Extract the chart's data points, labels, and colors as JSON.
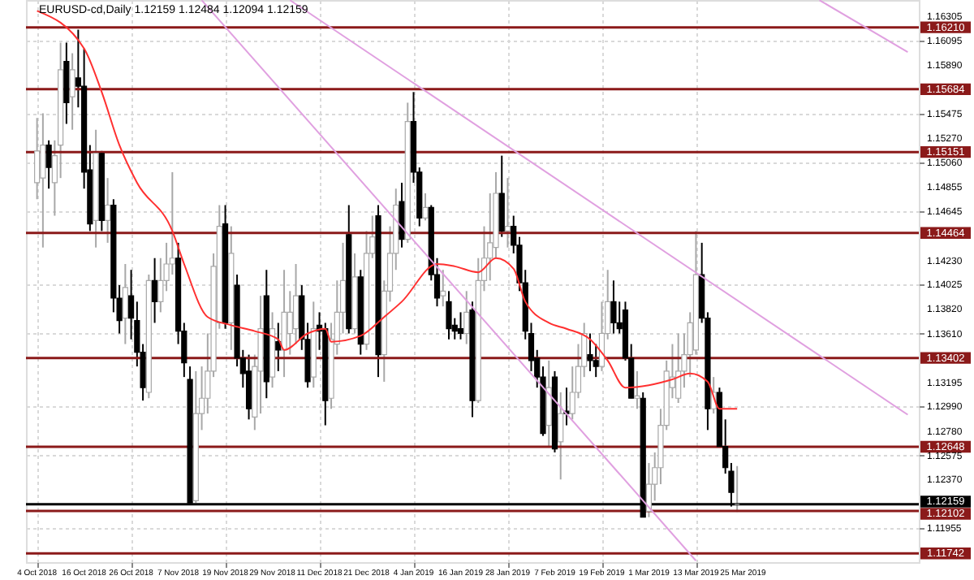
{
  "chart_data": {
    "type": "candlestick",
    "title": "EURUSD-cd,Daily  1.12159 1.12484 1.12094 1.12159",
    "categories": [
      "4 Oct 2018",
      null,
      null,
      null,
      null,
      null,
      null,
      null,
      "16 Oct 2018",
      null,
      null,
      null,
      null,
      null,
      null,
      null,
      "26 Oct 2018",
      null,
      null,
      null,
      null,
      null,
      null,
      null,
      "7 Nov 2018",
      null,
      null,
      null,
      null,
      null,
      null,
      null,
      "19 Nov 2018",
      null,
      null,
      null,
      null,
      null,
      null,
      null,
      "29 Nov 2018",
      null,
      null,
      null,
      null,
      null,
      null,
      null,
      "11 Dec 2018",
      null,
      null,
      null,
      null,
      null,
      null,
      null,
      "21 Dec 2018",
      null,
      null,
      null,
      null,
      null,
      null,
      null,
      "4 Jan 2019",
      null,
      null,
      null,
      null,
      null,
      null,
      null,
      "16 Jan 2019",
      null,
      null,
      null,
      null,
      null,
      null,
      null,
      "28 Jan 2019",
      null,
      null,
      null,
      null,
      null,
      null,
      null,
      "7 Feb 2019",
      null,
      null,
      null,
      null,
      null,
      null,
      null,
      "19 Feb 2019",
      null,
      null,
      null,
      null,
      null,
      null,
      null,
      "1 Mar 2019",
      null,
      null,
      null,
      null,
      null,
      null,
      null,
      "13 Mar 2019",
      null,
      null,
      null,
      null,
      null,
      null,
      null,
      "25 Mar 2019",
      null,
      null,
      null,
      null,
      null,
      null,
      null,
      null,
      null,
      null,
      null,
      null,
      null,
      null,
      null,
      null,
      null,
      null,
      null,
      null,
      null,
      null,
      null,
      null,
      null,
      null,
      null,
      null
    ],
    "ohlc": [
      [
        1.1489,
        1.1544,
        1.1475,
        1.1516
      ],
      [
        1.1493,
        1.1548,
        1.1434,
        1.1521
      ],
      [
        1.1521,
        1.1525,
        1.1484,
        1.1502
      ],
      [
        1.1489,
        1.1525,
        1.1461,
        1.1512
      ],
      [
        1.1521,
        1.1608,
        1.1493,
        1.1585
      ],
      [
        1.1592,
        1.1608,
        1.1539,
        1.1557
      ],
      [
        1.1562,
        1.1599,
        1.1534,
        1.1585
      ],
      [
        1.1578,
        1.1619,
        1.1553,
        1.1571
      ],
      [
        1.1571,
        1.1603,
        1.1484,
        1.1498
      ],
      [
        1.15,
        1.1521,
        1.1448,
        1.1454
      ],
      [
        1.1457,
        1.1534,
        1.1434,
        1.1514
      ],
      [
        1.1514,
        1.1516,
        1.1448,
        1.1457
      ],
      [
        1.1457,
        1.1493,
        1.1438,
        1.147
      ],
      [
        1.147,
        1.1475,
        1.1379,
        1.1391
      ],
      [
        1.1391,
        1.1402,
        1.1361,
        1.1372
      ],
      [
        1.1374,
        1.142,
        1.1352,
        1.14
      ],
      [
        1.1393,
        1.1415,
        1.1356,
        1.1374
      ],
      [
        1.1372,
        1.1388,
        1.1333,
        1.1345
      ],
      [
        1.1345,
        1.1352,
        1.1304,
        1.1315
      ],
      [
        1.1311,
        1.1411,
        1.1306,
        1.1406
      ],
      [
        1.1406,
        1.1425,
        1.137,
        1.1388
      ],
      [
        1.1388,
        1.1425,
        1.1379,
        1.1406
      ],
      [
        1.1406,
        1.1438,
        1.1397,
        1.142
      ],
      [
        1.142,
        1.1498,
        1.1411,
        1.1425
      ],
      [
        1.1425,
        1.1438,
        1.1352,
        1.1363
      ],
      [
        1.1363,
        1.137,
        1.1324,
        1.1336
      ],
      [
        1.1322,
        1.1333,
        1.1217,
        1.1217
      ],
      [
        1.1219,
        1.1329,
        1.1217,
        1.1293
      ],
      [
        1.1293,
        1.1333,
        1.1279,
        1.1306
      ],
      [
        1.1306,
        1.1361,
        1.1293,
        1.1329
      ],
      [
        1.1329,
        1.1429,
        1.1324,
        1.1418
      ],
      [
        1.137,
        1.147,
        1.1365,
        1.1452
      ],
      [
        1.1454,
        1.147,
        1.1365,
        1.137
      ],
      [
        1.137,
        1.1452,
        1.1347,
        1.1429
      ],
      [
        1.1402,
        1.1411,
        1.1333,
        1.134
      ],
      [
        1.134,
        1.1347,
        1.1315,
        1.1327
      ],
      [
        1.1329,
        1.1343,
        1.1288,
        1.1297
      ],
      [
        1.129,
        1.1343,
        1.1279,
        1.1333
      ],
      [
        1.1329,
        1.1393,
        1.1293,
        1.1365
      ],
      [
        1.1393,
        1.1415,
        1.1306,
        1.132
      ],
      [
        1.1324,
        1.1379,
        1.1315,
        1.1365
      ],
      [
        1.1354,
        1.137,
        1.1329,
        1.1347
      ],
      [
        1.1347,
        1.1415,
        1.1324,
        1.1379
      ],
      [
        1.1361,
        1.1397,
        1.1343,
        1.1379
      ],
      [
        1.1365,
        1.142,
        1.1352,
        1.1393
      ],
      [
        1.1393,
        1.1402,
        1.1347,
        1.1356
      ],
      [
        1.1356,
        1.137,
        1.1315,
        1.132
      ],
      [
        1.1324,
        1.1388,
        1.1315,
        1.1365
      ],
      [
        1.1368,
        1.1379,
        1.1347,
        1.1363
      ],
      [
        1.1365,
        1.137,
        1.1283,
        1.1304
      ],
      [
        1.1306,
        1.137,
        1.1297,
        1.1356
      ],
      [
        1.1352,
        1.1406,
        1.1343,
        1.1379
      ],
      [
        1.1379,
        1.1438,
        1.1361,
        1.1406
      ],
      [
        1.1445,
        1.147,
        1.1361,
        1.1365
      ],
      [
        1.1365,
        1.1429,
        1.1361,
        1.1409
      ],
      [
        1.1409,
        1.1415,
        1.1343,
        1.1352
      ],
      [
        1.1352,
        1.1448,
        1.1347,
        1.1429
      ],
      [
        1.1429,
        1.1461,
        1.1425,
        1.1443
      ],
      [
        1.1461,
        1.147,
        1.1324,
        1.1343
      ],
      [
        1.1343,
        1.1406,
        1.132,
        1.1397
      ],
      [
        1.1397,
        1.1452,
        1.1388,
        1.1429
      ],
      [
        1.1429,
        1.1484,
        1.1415,
        1.147
      ],
      [
        1.1473,
        1.1489,
        1.1434,
        1.1441
      ],
      [
        1.1441,
        1.1557,
        1.1438,
        1.1541
      ],
      [
        1.1541,
        1.1566,
        1.1489,
        1.1498
      ],
      [
        1.1498,
        1.1502,
        1.1452,
        1.1459
      ],
      [
        1.1459,
        1.148,
        1.1457,
        1.1468
      ],
      [
        1.1468,
        1.147,
        1.1406,
        1.1411
      ],
      [
        1.1411,
        1.1425,
        1.1384,
        1.1391
      ],
      [
        1.1393,
        1.1415,
        1.1384,
        1.1397
      ],
      [
        1.1388,
        1.1397,
        1.1356,
        1.1365
      ],
      [
        1.1368,
        1.1374,
        1.1356,
        1.1363
      ],
      [
        1.1365,
        1.1379,
        1.1356,
        1.1361
      ],
      [
        1.1361,
        1.1397,
        1.1352,
        1.1379
      ],
      [
        1.1381,
        1.1388,
        1.129,
        1.1304
      ],
      [
        1.1304,
        1.1425,
        1.1302,
        1.1406
      ],
      [
        1.1406,
        1.1452,
        1.1397,
        1.1425
      ],
      [
        1.1425,
        1.148,
        1.1406,
        1.1438
      ],
      [
        1.1434,
        1.1498,
        1.1425,
        1.148
      ],
      [
        1.148,
        1.1512,
        1.1443,
        1.1448
      ],
      [
        1.1448,
        1.1493,
        1.1434,
        1.1452
      ],
      [
        1.1452,
        1.1461,
        1.1429,
        1.1436
      ],
      [
        1.1436,
        1.1443,
        1.1397,
        1.1404
      ],
      [
        1.1404,
        1.1415,
        1.1356,
        1.1363
      ],
      [
        1.1361,
        1.137,
        1.1329,
        1.1338
      ],
      [
        1.134,
        1.1347,
        1.1315,
        1.1324
      ],
      [
        1.1324,
        1.1333,
        1.1274,
        1.1276
      ],
      [
        1.1283,
        1.1338,
        1.1265,
        1.1315
      ],
      [
        1.1324,
        1.1329,
        1.126,
        1.1263
      ],
      [
        1.1269,
        1.1311,
        1.1237,
        1.1293
      ],
      [
        1.1295,
        1.1315,
        1.1283,
        1.1293
      ],
      [
        1.1293,
        1.1333,
        1.1288,
        1.1311
      ],
      [
        1.1311,
        1.1352,
        1.1306,
        1.1333
      ],
      [
        1.1333,
        1.137,
        1.1324,
        1.1361
      ],
      [
        1.1343,
        1.1361,
        1.1329,
        1.1338
      ],
      [
        1.1338,
        1.1352,
        1.1324,
        1.1333
      ],
      [
        1.1333,
        1.1388,
        1.1329,
        1.1361
      ],
      [
        1.1361,
        1.1415,
        1.1356,
        1.1388
      ],
      [
        1.1388,
        1.1406,
        1.1361,
        1.137
      ],
      [
        1.137,
        1.1388,
        1.1361,
        1.1365
      ],
      [
        1.1381,
        1.1388,
        1.1338,
        1.134
      ],
      [
        1.134,
        1.1352,
        1.1306,
        1.1306
      ],
      [
        1.1306,
        1.1329,
        1.1297,
        1.1308
      ],
      [
        1.1306,
        1.1311,
        1.1205,
        1.1205
      ],
      [
        1.121,
        1.1251,
        1.1205,
        1.1233
      ],
      [
        1.1233,
        1.126,
        1.1219,
        1.1247
      ],
      [
        1.1247,
        1.1297,
        1.1233,
        1.1283
      ],
      [
        1.1283,
        1.1338,
        1.1279,
        1.1329
      ],
      [
        1.1315,
        1.1352,
        1.1306,
        1.1324
      ],
      [
        1.1306,
        1.1361,
        1.1302,
        1.1329
      ],
      [
        1.1329,
        1.1361,
        1.1315,
        1.1343
      ],
      [
        1.1343,
        1.1379,
        1.1324,
        1.137
      ],
      [
        1.1347,
        1.1448,
        1.1343,
        1.1411
      ],
      [
        1.1411,
        1.1438,
        1.137,
        1.1374
      ],
      [
        1.1374,
        1.1379,
        1.1279,
        1.1297
      ],
      [
        1.1297,
        1.1324,
        1.1293,
        1.1311
      ],
      [
        1.1311,
        1.1315,
        1.1265,
        1.1265
      ],
      [
        1.1265,
        1.1288,
        1.1242,
        1.1247
      ],
      [
        1.1244,
        1.1251,
        1.1214,
        1.1226
      ],
      [
        1.12159,
        1.12484,
        1.12094,
        1.12159
      ],
      null,
      null,
      null,
      null,
      null,
      null,
      null,
      null,
      null,
      null,
      null,
      null,
      null,
      null,
      null,
      null,
      null,
      null,
      null,
      null,
      null,
      null,
      null,
      null,
      null,
      null,
      null,
      null,
      null
    ],
    "series": [
      {
        "type": "line",
        "color": "#ff3030",
        "values": [
          1.1635,
          null,
          null,
          null,
          null,
          null,
          null,
          null,
          1.1603,
          null,
          null,
          1.1566,
          null,
          null,
          1.1521,
          null,
          null,
          1.1489,
          null,
          null,
          null,
          null,
          null,
          1.1448,
          null,
          1.142,
          null,
          null,
          null,
          1.1375,
          null,
          null,
          null,
          1.1368,
          null,
          null,
          null,
          1.1363,
          null,
          null,
          null,
          1.1356,
          1.1347,
          null,
          null,
          null,
          1.1361,
          null,
          null,
          1.1365,
          1.1354,
          null,
          null,
          null,
          null,
          1.1359,
          null,
          null,
          null,
          1.1375,
          null,
          null,
          1.1388,
          null,
          null,
          null,
          null,
          null,
          1.142,
          null,
          null,
          1.1418,
          null,
          null,
          null,
          1.1413,
          null,
          null,
          1.1425,
          null,
          null,
          1.1416,
          null,
          1.1388,
          null,
          null,
          null,
          1.137,
          null,
          null,
          1.1365,
          null,
          null,
          null,
          1.1356,
          null,
          null,
          1.1338,
          null,
          null,
          1.1315,
          null,
          null,
          null,
          1.1317,
          null,
          null,
          null,
          1.1322,
          null,
          null,
          1.1327,
          null,
          null,
          1.132,
          null,
          1.1297,
          null,
          null,
          1.1297,
          null,
          null,
          null,
          null,
          null,
          null,
          null,
          null,
          null,
          null,
          null,
          null,
          null,
          null,
          null,
          null,
          null,
          null,
          null,
          null,
          null,
          null,
          null,
          null,
          null,
          null,
          null,
          null,
          null
        ]
      },
      {
        "type": "line",
        "color": "#e0a0e0",
        "values": [
          null,
          null,
          null,
          null,
          null,
          null,
          null,
          null,
          null,
          null,
          null,
          null,
          null,
          null,
          null,
          null,
          null,
          null,
          null,
          null,
          null,
          null,
          null,
          null,
          null,
          null,
          null,
          null,
          1.1644,
          null,
          null,
          null,
          null,
          null,
          null,
          null,
          null,
          null,
          null,
          null,
          null,
          null,
          null,
          null,
          null,
          null,
          null,
          null,
          null,
          null,
          null,
          null,
          null,
          null,
          null,
          null,
          null,
          null,
          null,
          null,
          null,
          null,
          null,
          null,
          null,
          null,
          null,
          null,
          null,
          null,
          null,
          null,
          null,
          null,
          null,
          null,
          null,
          null,
          null,
          null,
          null,
          null,
          null,
          null,
          null,
          null,
          null,
          null,
          null,
          null,
          null,
          null,
          null,
          null,
          null,
          null,
          null,
          null,
          null,
          null,
          null,
          null,
          null,
          null,
          null,
          null,
          null,
          null,
          null,
          null,
          null,
          null,
          1.1168,
          null,
          null,
          null,
          null,
          null,
          null,
          null,
          null,
          null,
          null,
          null,
          null,
          null,
          null,
          null,
          null,
          null,
          null,
          null,
          null,
          null,
          null,
          null,
          null,
          null,
          null,
          null,
          null,
          null,
          null,
          null,
          null,
          null,
          null,
          null,
          null
        ]
      },
      {
        "type": "line",
        "color": "#e0a0e0",
        "values": [
          null,
          null,
          null,
          null,
          null,
          null,
          null,
          null,
          null,
          null,
          null,
          null,
          null,
          null,
          null,
          null,
          null,
          null,
          null,
          null,
          null,
          null,
          null,
          null,
          null,
          null,
          null,
          null,
          null,
          null,
          null,
          null,
          null,
          null,
          null,
          null,
          null,
          null,
          null,
          null,
          null,
          null,
          null,
          1.1644,
          null,
          null,
          null,
          null,
          null,
          null,
          null,
          null,
          null,
          null,
          null,
          null,
          null,
          null,
          null,
          null,
          null,
          null,
          null,
          null,
          null,
          null,
          null,
          null,
          null,
          null,
          null,
          null,
          null,
          null,
          null,
          null,
          null,
          null,
          null,
          null,
          null,
          null,
          null,
          null,
          null,
          null,
          null,
          null,
          null,
          null,
          null,
          null,
          null,
          null,
          null,
          null,
          null,
          null,
          null,
          null,
          null,
          null,
          null,
          null,
          null,
          null,
          null,
          null,
          null,
          null,
          null,
          null,
          null,
          null,
          null,
          null,
          null,
          null,
          null,
          null,
          null,
          null,
          null,
          null,
          null,
          null,
          null,
          null,
          null,
          null,
          null,
          null,
          null,
          null,
          null,
          null,
          null,
          null,
          null,
          null,
          null,
          null,
          null,
          null,
          null,
          null,
          null,
          null,
          1.1292
        ]
      },
      {
        "type": "line",
        "color": "#e0a0e0",
        "values": [
          null,
          null,
          null,
          null,
          null,
          null,
          null,
          null,
          null,
          null,
          null,
          null,
          null,
          null,
          null,
          null,
          null,
          null,
          null,
          null,
          null,
          null,
          null,
          null,
          null,
          null,
          null,
          null,
          null,
          null,
          null,
          null,
          null,
          null,
          null,
          null,
          null,
          null,
          null,
          null,
          null,
          null,
          null,
          null,
          null,
          null,
          null,
          null,
          null,
          null,
          null,
          null,
          null,
          null,
          null,
          null,
          null,
          null,
          null,
          null,
          null,
          null,
          null,
          null,
          null,
          null,
          null,
          null,
          null,
          null,
          null,
          null,
          null,
          null,
          null,
          null,
          null,
          null,
          null,
          null,
          null,
          null,
          null,
          null,
          null,
          null,
          null,
          null,
          null,
          null,
          null,
          null,
          null,
          null,
          null,
          null,
          null,
          null,
          null,
          null,
          null,
          null,
          null,
          null,
          null,
          null,
          null,
          null,
          null,
          null,
          null,
          null,
          null,
          null,
          null,
          null,
          null,
          null,
          null,
          null,
          null,
          null,
          null,
          null,
          null,
          null,
          null,
          null,
          null,
          null,
          null,
          null,
          null,
          1.1644,
          null,
          null,
          null,
          null,
          null,
          null,
          null,
          null,
          null,
          null,
          null,
          null,
          null,
          null,
          1.16
        ]
      }
    ],
    "ylim": [
      1.11668,
      1.16442
    ],
    "yticks": [
      1.16305,
      1.16095,
      {
        "value": 1.1589,
        "label": "1.15890"
      },
      1.15475,
      {
        "value": 1.1527,
        "label": "1.15270"
      },
      {
        "value": 1.1506,
        "label": "1.15060"
      },
      1.14855,
      1.14645,
      {
        "value": 1.1423,
        "label": "1.14230"
      },
      1.14025,
      {
        "value": 1.1382,
        "label": "1.13820"
      },
      {
        "value": 1.1361,
        "label": "1.13610"
      },
      1.13195,
      {
        "value": 1.1299,
        "label": "1.12990"
      },
      {
        "value": 1.1278,
        "label": "1.12780"
      },
      1.12575,
      {
        "value": 1.1237,
        "label": "1.12370"
      },
      1.11955
    ],
    "ref_lines": [
      {
        "axis": "y",
        "value": 1.1621,
        "label": "1.16210",
        "color": "#8b1a1a"
      },
      {
        "axis": "y",
        "value": 1.15684,
        "label": "1.15684",
        "color": "#8b1a1a"
      },
      {
        "axis": "y",
        "value": 1.15151,
        "label": "1.15151",
        "color": "#8b1a1a"
      },
      {
        "axis": "y",
        "value": 1.14464,
        "label": "1.14464",
        "color": "#8b1a1a"
      },
      {
        "axis": "y",
        "value": 1.13402,
        "label": "1.13402",
        "color": "#8b1a1a"
      },
      {
        "axis": "y",
        "value": 1.12648,
        "label": "1.12648",
        "color": "#8b1a1a"
      },
      {
        "axis": "y",
        "value": 1.12102,
        "label": "1.12102",
        "color": "#8b1a1a"
      },
      {
        "axis": "y",
        "value": 1.11742,
        "label": "1.11742",
        "color": "#8b1a1a"
      },
      {
        "axis": "y",
        "value": 1.12159,
        "label": "1.12159",
        "color": "#000000"
      }
    ],
    "grid": true
  }
}
